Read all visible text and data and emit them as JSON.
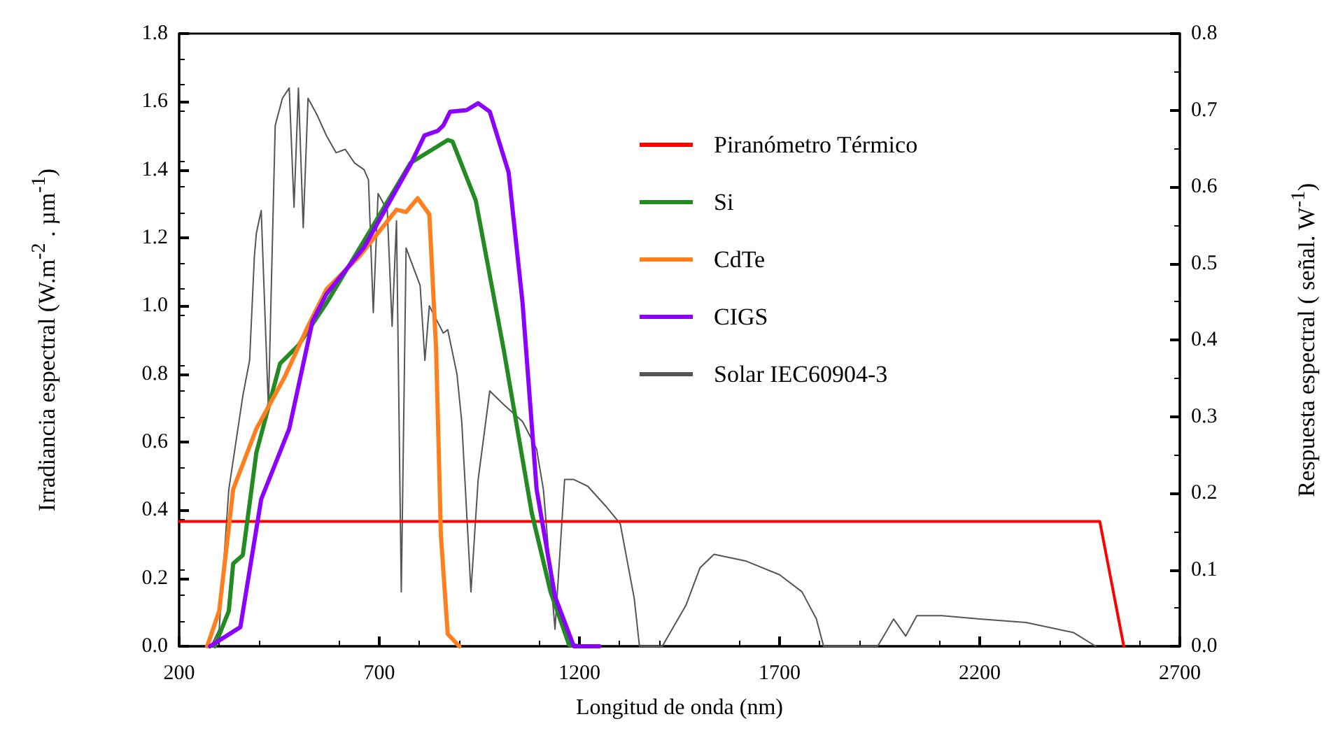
{
  "chart_data": {
    "type": "line",
    "xlabel": "Longitud de onda (nm)",
    "ylabel": "Irradiancia espectral (W.m$^{-2}$ . µm$^{-1}$)",
    "y2label": "Respuesta espectral ( señal. W$^{-1}$)",
    "xlim": [
      200,
      2700
    ],
    "xticks": [
      200,
      700,
      1200,
      1700,
      2200,
      2700
    ],
    "ylim": [
      0,
      1.8
    ],
    "yticks": [
      {
        "value": 0,
        "label": "0.0"
      },
      {
        "value": 0.2,
        "label": "0.2"
      },
      {
        "value": 0.4,
        "label": "0.4"
      },
      {
        "value": 0.6,
        "label": "0.6"
      },
      {
        "value": 0.8,
        "label": "0.8"
      },
      {
        "value": 1,
        "label": "1.0"
      },
      {
        "value": 1.2,
        "label": "1.2"
      },
      {
        "value": 1.4,
        "label": "1.4"
      },
      {
        "value": 1.6,
        "label": "1.6"
      },
      {
        "value": 1.8,
        "label": "1.8"
      }
    ],
    "y2lim": [
      0,
      0.8
    ],
    "y2ticks": [
      {
        "value": 0,
        "label": "0.0"
      },
      {
        "value": 0.1,
        "label": "0.1"
      },
      {
        "value": 0.2,
        "label": "0.2"
      },
      {
        "value": 0.3,
        "label": "0.3"
      },
      {
        "value": 0.4,
        "label": "0.4"
      },
      {
        "value": 0.5,
        "label": "0.5"
      },
      {
        "value": 0.6,
        "label": "0.6"
      },
      {
        "value": 0.7,
        "label": "0.7"
      },
      {
        "value": 0.8,
        "label": "0.8"
      }
    ],
    "grid": false,
    "legend": "top right",
    "marker": "none",
    "line_style": "solid",
    "series": [
      {
        "name": "Piranómetro Térmico",
        "color": "#ff0000",
        "axis": "y2",
        "x": [
          200,
          2500,
          2560
        ],
        "values": [
          0.163,
          0.163,
          0
        ]
      },
      {
        "name": "Si",
        "color": "#228b22",
        "axis": "y2",
        "x": [
          289,
          324,
          335,
          359,
          393,
          452,
          498,
          568,
          673,
          778,
          871,
          883,
          941,
          1011,
          1081,
          1128,
          1174,
          1200
        ],
        "values": [
          0,
          0.046,
          0.108,
          0.119,
          0.253,
          0.369,
          0.393,
          0.448,
          0.539,
          0.631,
          0.661,
          0.659,
          0.582,
          0.387,
          0.174,
          0.071,
          0.002,
          0
        ]
      },
      {
        "name": "CdTe",
        "color": "#ff7f1e",
        "axis": "y2",
        "x": [
          270,
          300,
          335,
          393,
          463,
          522,
          568,
          650,
          743,
          767,
          796,
          825,
          842,
          854,
          871,
          900
        ],
        "values": [
          0,
          0.046,
          0.205,
          0.284,
          0.351,
          0.418,
          0.466,
          0.509,
          0.57,
          0.567,
          0.585,
          0.564,
          0.387,
          0.144,
          0.016,
          0
        ]
      },
      {
        "name": "CIGS",
        "color": "#8b00ff",
        "axis": "y2",
        "x": [
          277,
          353,
          405,
          475,
          533,
          568,
          662,
          778,
          813,
          846,
          860,
          877,
          918,
          947,
          976,
          1023,
          1058,
          1093,
          1139,
          1186,
          1250
        ],
        "values": [
          0,
          0.025,
          0.192,
          0.284,
          0.424,
          0.46,
          0.521,
          0.629,
          0.667,
          0.673,
          0.68,
          0.698,
          0.7,
          0.709,
          0.698,
          0.619,
          0.448,
          0.205,
          0.065,
          0,
          0
        ]
      },
      {
        "name": "Solar IEC60904-3",
        "color": "#555555",
        "axis": "y",
        "x": [
          280,
          300,
          324,
          359,
          376,
          388,
          393,
          405,
          423,
          440,
          458,
          475,
          487,
          498,
          510,
          522,
          545,
          568,
          592,
          615,
          638,
          662,
          673,
          685,
          697,
          720,
          732,
          743,
          755,
          767,
          802,
          814,
          825,
          860,
          871,
          894,
          906,
          929,
          947,
          976,
          1011,
          1058,
          1093,
          1110,
          1139,
          1163,
          1186,
          1221,
          1267,
          1302,
          1337,
          1350,
          1407,
          1466,
          1501,
          1536,
          1617,
          1700,
          1756,
          1792,
          1810,
          1945,
          1985,
          2015,
          2043,
          2106,
          2200,
          2316,
          2435,
          2490
        ],
        "values": [
          0,
          0.05,
          0.46,
          0.735,
          0.84,
          1.146,
          1.214,
          1.28,
          0.7,
          1.53,
          1.61,
          1.64,
          1.29,
          1.64,
          1.23,
          1.61,
          1.56,
          1.5,
          1.45,
          1.46,
          1.42,
          1.4,
          1.37,
          0.98,
          1.33,
          1.28,
          0.94,
          1.25,
          0.16,
          1.17,
          1.06,
          0.84,
          1.0,
          0.92,
          0.93,
          0.8,
          0.66,
          0.16,
          0.49,
          0.75,
          0.71,
          0.66,
          0.58,
          0.46,
          0.05,
          0.49,
          0.49,
          0.47,
          0.41,
          0.36,
          0.14,
          0,
          0,
          0.12,
          0.23,
          0.27,
          0.25,
          0.21,
          0.16,
          0.08,
          0,
          0,
          0.08,
          0.03,
          0.09,
          0.09,
          0.08,
          0.07,
          0.04,
          0
        ]
      }
    ]
  }
}
